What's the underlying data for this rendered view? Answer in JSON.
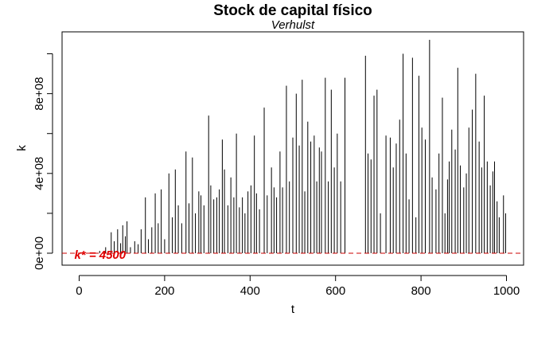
{
  "chart_data": {
    "type": "line",
    "title": "Stock de capital físico",
    "subtitle": "Verhulst",
    "xlabel": "t",
    "ylabel": "k",
    "xlim": [
      -40,
      1040
    ],
    "ylim": [
      -60000000,
      1110000000
    ],
    "x_ticks": [
      0,
      200,
      400,
      600,
      800,
      1000
    ],
    "x_tick_labels": [
      "0",
      "200",
      "400",
      "600",
      "800",
      "1000"
    ],
    "y_ticks": [
      0,
      200000000,
      400000000,
      600000000,
      800000000,
      1000000000
    ],
    "y_tick_labels": [
      "0e+00",
      "",
      "4e+08",
      "",
      "8e+08",
      ""
    ],
    "grid": false,
    "colors": {
      "series": "#000000",
      "reference": "#cc0000",
      "annotation": "#e00000"
    },
    "reference_line": {
      "y": 4500,
      "style": "dashed"
    },
    "annotation": {
      "text": "k* = 4500",
      "x": 0,
      "y": 0
    },
    "series": [
      {
        "peaks": [
          [
            48,
            12000000
          ],
          [
            62,
            30000000
          ],
          [
            75,
            105000000
          ],
          [
            82,
            60000000
          ],
          [
            90,
            120000000
          ],
          [
            97,
            50000000
          ],
          [
            102,
            140000000
          ],
          [
            108,
            85000000
          ],
          [
            112,
            160000000
          ],
          [
            120,
            30000000
          ],
          [
            130,
            60000000
          ],
          [
            138,
            45000000
          ],
          [
            145,
            120000000
          ],
          [
            155,
            280000000
          ],
          [
            162,
            70000000
          ],
          [
            170,
            130000000
          ],
          [
            178,
            300000000
          ],
          [
            185,
            150000000
          ],
          [
            192,
            320000000
          ],
          [
            200,
            70000000
          ],
          [
            210,
            400000000
          ],
          [
            218,
            180000000
          ],
          [
            225,
            420000000
          ],
          [
            232,
            240000000
          ],
          [
            240,
            150000000
          ],
          [
            250,
            510000000
          ],
          [
            257,
            250000000
          ],
          [
            265,
            480000000
          ],
          [
            272,
            200000000
          ],
          [
            280,
            310000000
          ],
          [
            285,
            290000000
          ],
          [
            292,
            240000000
          ],
          [
            303,
            690000000
          ],
          [
            308,
            340000000
          ],
          [
            315,
            270000000
          ],
          [
            322,
            280000000
          ],
          [
            328,
            320000000
          ],
          [
            335,
            570000000
          ],
          [
            340,
            420000000
          ],
          [
            348,
            240000000
          ],
          [
            355,
            380000000
          ],
          [
            362,
            280000000
          ],
          [
            368,
            600000000
          ],
          [
            375,
            230000000
          ],
          [
            382,
            280000000
          ],
          [
            388,
            200000000
          ],
          [
            395,
            310000000
          ],
          [
            402,
            340000000
          ],
          [
            410,
            590000000
          ],
          [
            415,
            300000000
          ],
          [
            422,
            220000000
          ],
          [
            433,
            730000000
          ],
          [
            440,
            290000000
          ],
          [
            450,
            430000000
          ],
          [
            456,
            330000000
          ],
          [
            462,
            280000000
          ],
          [
            470,
            510000000
          ],
          [
            476,
            330000000
          ],
          [
            485,
            840000000
          ],
          [
            492,
            360000000
          ],
          [
            500,
            580000000
          ],
          [
            508,
            800000000
          ],
          [
            515,
            540000000
          ],
          [
            522,
            870000000
          ],
          [
            528,
            310000000
          ],
          [
            535,
            660000000
          ],
          [
            542,
            560000000
          ],
          [
            550,
            590000000
          ],
          [
            556,
            360000000
          ],
          [
            562,
            530000000
          ],
          [
            567,
            510000000
          ],
          [
            576,
            880000000
          ],
          [
            583,
            360000000
          ],
          [
            590,
            820000000
          ],
          [
            597,
            430000000
          ],
          [
            604,
            600000000
          ],
          [
            612,
            360000000
          ],
          [
            622,
            880000000
          ],
          [
            670,
            990000000
          ],
          [
            676,
            500000000
          ],
          [
            683,
            470000000
          ],
          [
            690,
            790000000
          ],
          [
            697,
            820000000
          ],
          [
            705,
            200000000
          ],
          [
            718,
            590000000
          ],
          [
            728,
            580000000
          ],
          [
            735,
            430000000
          ],
          [
            742,
            550000000
          ],
          [
            750,
            670000000
          ],
          [
            758,
            1000000000
          ],
          [
            765,
            500000000
          ],
          [
            772,
            270000000
          ],
          [
            780,
            980000000
          ],
          [
            788,
            180000000
          ],
          [
            795,
            890000000
          ],
          [
            802,
            630000000
          ],
          [
            810,
            570000000
          ],
          [
            820,
            1070000000
          ],
          [
            826,
            380000000
          ],
          [
            835,
            320000000
          ],
          [
            842,
            500000000
          ],
          [
            850,
            780000000
          ],
          [
            856,
            200000000
          ],
          [
            862,
            370000000
          ],
          [
            866,
            460000000
          ],
          [
            872,
            620000000
          ],
          [
            880,
            520000000
          ],
          [
            886,
            930000000
          ],
          [
            892,
            440000000
          ],
          [
            900,
            330000000
          ],
          [
            906,
            400000000
          ],
          [
            912,
            630000000
          ],
          [
            920,
            720000000
          ],
          [
            928,
            900000000
          ],
          [
            936,
            560000000
          ],
          [
            942,
            430000000
          ],
          [
            948,
            790000000
          ],
          [
            955,
            460000000
          ],
          [
            962,
            340000000
          ],
          [
            968,
            410000000
          ],
          [
            972,
            460000000
          ],
          [
            978,
            260000000
          ],
          [
            983,
            180000000
          ],
          [
            993,
            290000000
          ],
          [
            998,
            200000000
          ]
        ]
      }
    ]
  }
}
